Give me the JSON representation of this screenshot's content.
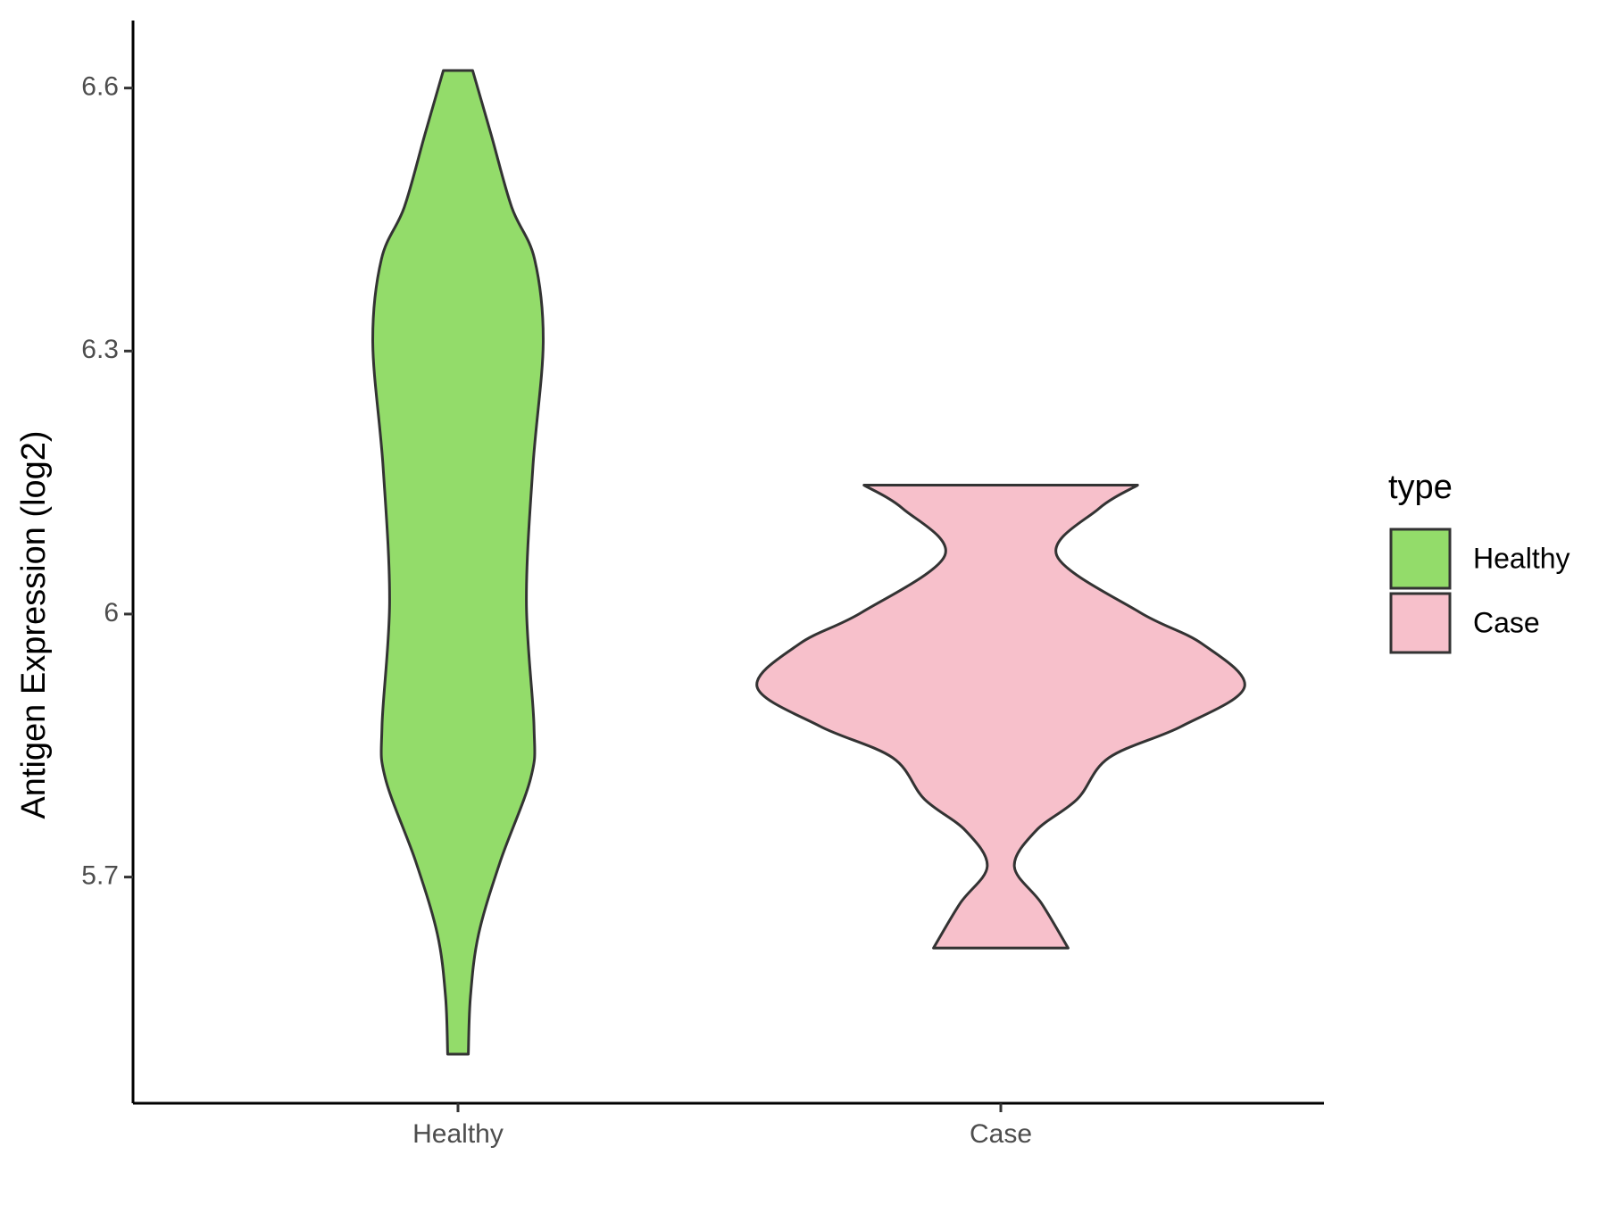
{
  "chart_data": {
    "type": "violin",
    "y_label": "Antigen Expression (log2)",
    "legend_title": "type",
    "categories": [
      "Healthy",
      "Case"
    ],
    "ylim": [
      5.442,
      6.677
    ],
    "yticks": [
      5.7,
      6.0,
      6.3,
      6.6
    ],
    "series": [
      {
        "name": "Healthy",
        "color": "#93dc6a",
        "y": [
          6.62,
          6.547,
          6.464,
          6.405,
          6.31,
          6.168,
          6.014,
          5.872,
          5.813,
          5.718,
          5.635,
          5.564,
          5.498
        ],
        "density": [
          0.027,
          0.061,
          0.099,
          0.141,
          0.157,
          0.138,
          0.126,
          0.14,
          0.134,
          0.078,
          0.038,
          0.023,
          0.019
        ]
      },
      {
        "name": "Case",
        "color": "#f7c0cb",
        "y": [
          6.147,
          6.12,
          6.067,
          6.002,
          5.966,
          5.917,
          5.872,
          5.836,
          5.789,
          5.753,
          5.712,
          5.67,
          5.619
        ],
        "density": [
          0.252,
          0.18,
          0.103,
          0.256,
          0.371,
          0.449,
          0.333,
          0.199,
          0.141,
          0.065,
          0.025,
          0.075,
          0.124
        ]
      }
    ],
    "legend_position": "right"
  }
}
